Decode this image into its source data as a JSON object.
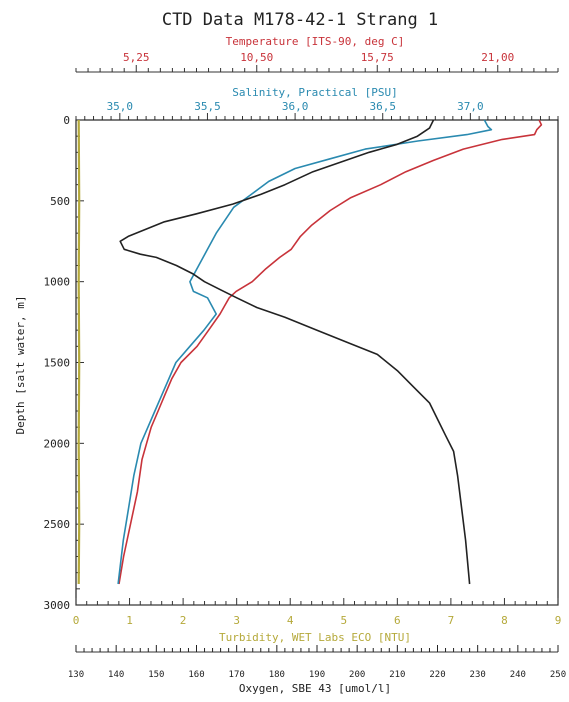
{
  "chart_data": {
    "type": "line",
    "title": "CTD Data M178-42-1 Strang 1",
    "y_axis": {
      "label": "Depth [salt water, m]",
      "range": [
        0,
        3000
      ],
      "inverted": true,
      "ticks": [
        0,
        500,
        1000,
        1500,
        2000,
        2500,
        3000
      ]
    },
    "axes": {
      "temperature": {
        "label": "Temperature [ITS-90, deg C]",
        "position": "top",
        "color": "#c8333a",
        "range": [
          2.625,
          23.625
        ],
        "ticks": [
          5.25,
          10.5,
          15.75,
          21.0
        ],
        "tick_labels": [
          "5,25",
          "10,50",
          "15,75",
          "21,00"
        ]
      },
      "salinity": {
        "label": "Salinity, Practical [PSU]",
        "position": "top",
        "color": "#2a8ab0",
        "range": [
          34.75,
          37.5
        ],
        "ticks": [
          35.0,
          35.5,
          36.0,
          36.5,
          37.0
        ],
        "tick_labels": [
          "35,0",
          "35,5",
          "36,0",
          "36,5",
          "37,0"
        ]
      },
      "turbidity": {
        "label": "Turbidity, WET Labs ECO [NTU]",
        "position": "bottom",
        "color": "#b5a93a",
        "range": [
          0,
          9
        ],
        "ticks": [
          0,
          1,
          2,
          3,
          4,
          5,
          6,
          7,
          8,
          9
        ],
        "tick_labels": [
          "0",
          "1",
          "2",
          "3",
          "4",
          "5",
          "6",
          "7",
          "8",
          "9"
        ]
      },
      "oxygen": {
        "label": "Oxygen, SBE 43 [umol/l]",
        "position": "bottom",
        "color": "#222222",
        "range": [
          130,
          250
        ],
        "ticks": [
          130,
          140,
          150,
          160,
          170,
          180,
          190,
          200,
          210,
          220,
          230,
          240,
          250
        ],
        "tick_labels": [
          "130",
          "140",
          "150",
          "160",
          "170",
          "180",
          "190",
          "200",
          "210",
          "220",
          "230",
          "240",
          "250"
        ]
      }
    },
    "series": [
      {
        "axis": "temperature",
        "color": "#c8333a",
        "points": [
          [
            22.8,
            0
          ],
          [
            22.9,
            30
          ],
          [
            22.7,
            60
          ],
          [
            22.6,
            90
          ],
          [
            21.2,
            120
          ],
          [
            19.5,
            180
          ],
          [
            18.2,
            250
          ],
          [
            17.0,
            320
          ],
          [
            15.9,
            400
          ],
          [
            14.6,
            480
          ],
          [
            13.7,
            560
          ],
          [
            12.9,
            650
          ],
          [
            12.4,
            720
          ],
          [
            12.0,
            800
          ],
          [
            11.5,
            850
          ],
          [
            10.9,
            920
          ],
          [
            10.3,
            1000
          ],
          [
            9.6,
            1060
          ],
          [
            9.3,
            1100
          ],
          [
            9.1,
            1150
          ],
          [
            8.9,
            1200
          ],
          [
            8.4,
            1300
          ],
          [
            7.9,
            1400
          ],
          [
            7.2,
            1500
          ],
          [
            6.8,
            1600
          ],
          [
            6.5,
            1700
          ],
          [
            6.2,
            1800
          ],
          [
            5.9,
            1900
          ],
          [
            5.7,
            2000
          ],
          [
            5.5,
            2100
          ],
          [
            5.3,
            2300
          ],
          [
            5.0,
            2500
          ],
          [
            4.7,
            2700
          ],
          [
            4.5,
            2870
          ]
        ]
      },
      {
        "axis": "salinity",
        "color": "#2a8ab0",
        "points": [
          [
            37.08,
            0
          ],
          [
            37.1,
            40
          ],
          [
            37.12,
            60
          ],
          [
            36.98,
            90
          ],
          [
            36.7,
            130
          ],
          [
            36.4,
            180
          ],
          [
            36.2,
            240
          ],
          [
            36.0,
            300
          ],
          [
            35.85,
            380
          ],
          [
            35.75,
            460
          ],
          [
            35.65,
            540
          ],
          [
            35.6,
            620
          ],
          [
            35.55,
            700
          ],
          [
            35.5,
            800
          ],
          [
            35.45,
            900
          ],
          [
            35.4,
            1000
          ],
          [
            35.42,
            1060
          ],
          [
            35.5,
            1100
          ],
          [
            35.55,
            1200
          ],
          [
            35.48,
            1300
          ],
          [
            35.4,
            1400
          ],
          [
            35.32,
            1500
          ],
          [
            35.28,
            1600
          ],
          [
            35.24,
            1700
          ],
          [
            35.2,
            1800
          ],
          [
            35.16,
            1900
          ],
          [
            35.12,
            2000
          ],
          [
            35.08,
            2200
          ],
          [
            35.05,
            2400
          ],
          [
            35.02,
            2600
          ],
          [
            34.99,
            2870
          ]
        ]
      },
      {
        "axis": "oxygen",
        "color": "#222222",
        "points": [
          [
            219,
            0
          ],
          [
            218,
            50
          ],
          [
            215,
            100
          ],
          [
            210,
            150
          ],
          [
            203,
            200
          ],
          [
            196,
            260
          ],
          [
            189,
            320
          ],
          [
            182,
            400
          ],
          [
            176,
            460
          ],
          [
            169,
            520
          ],
          [
            160,
            580
          ],
          [
            152,
            630
          ],
          [
            147,
            680
          ],
          [
            143,
            720
          ],
          [
            141,
            750
          ],
          [
            142,
            800
          ],
          [
            146,
            830
          ],
          [
            150,
            850
          ],
          [
            155,
            900
          ],
          [
            159,
            950
          ],
          [
            162,
            1000
          ],
          [
            166,
            1050
          ],
          [
            170,
            1100
          ],
          [
            175,
            1160
          ],
          [
            182,
            1220
          ],
          [
            190,
            1300
          ],
          [
            198,
            1380
          ],
          [
            205,
            1450
          ],
          [
            210,
            1550
          ],
          [
            214,
            1650
          ],
          [
            218,
            1750
          ],
          [
            220,
            1850
          ],
          [
            222,
            1950
          ],
          [
            224,
            2050
          ],
          [
            225,
            2200
          ],
          [
            226,
            2400
          ],
          [
            227,
            2600
          ],
          [
            228,
            2870
          ]
        ]
      },
      {
        "axis": "turbidity",
        "color": "#b5a93a",
        "points": [
          [
            0.05,
            0
          ],
          [
            0.06,
            500
          ],
          [
            0.05,
            1000
          ],
          [
            0.06,
            1500
          ],
          [
            0.05,
            2000
          ],
          [
            0.06,
            2500
          ],
          [
            0.05,
            2870
          ]
        ]
      }
    ]
  }
}
